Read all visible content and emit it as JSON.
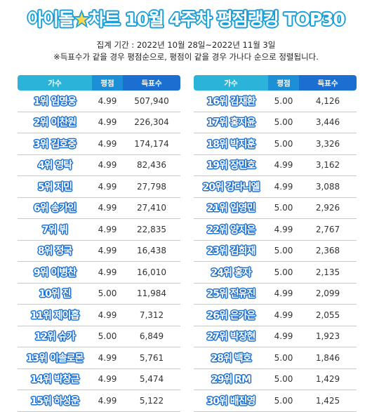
{
  "title_before_star": "아이돌",
  "title_star": "★",
  "title_after_star": "차트 10월 4주차 평점랭킹 TOP30",
  "period": "집계 기간 : 2022년 10월 28일~2022년 11월 3일",
  "note": "※득표수가 같을 경우 평점순으로, 평점이 같을 경우 가나다 순으로 정렬됩니다.",
  "headers": {
    "singer": "가수",
    "score": "평점",
    "votes": "득표수"
  },
  "colors": {
    "header_light": "#2bb3d9",
    "header_mid": "#1d8fd6",
    "header_dark": "#1a6fd1",
    "title_outline": "#1a9fd9"
  },
  "left": [
    {
      "name": "1위 임영웅",
      "score": "4.99",
      "votes": "507,940"
    },
    {
      "name": "2위 이찬원",
      "score": "4.99",
      "votes": "226,304"
    },
    {
      "name": "3위 김호중",
      "score": "4.99",
      "votes": "174,174"
    },
    {
      "name": "4위 영탁",
      "score": "4.99",
      "votes": "82,436"
    },
    {
      "name": "5위 지민",
      "score": "4.99",
      "votes": "27,798"
    },
    {
      "name": "6위 송가인",
      "score": "4.99",
      "votes": "27,410"
    },
    {
      "name": "7위 뷔",
      "score": "4.99",
      "votes": "22,835"
    },
    {
      "name": "8위 정국",
      "score": "4.99",
      "votes": "16,438"
    },
    {
      "name": "9위 이병찬",
      "score": "4.99",
      "votes": "16,010"
    },
    {
      "name": "10위 진",
      "score": "5.00",
      "votes": "11,984"
    },
    {
      "name": "11위 제이홉",
      "score": "4.99",
      "votes": "7,312"
    },
    {
      "name": "12위 슈가",
      "score": "5.00",
      "votes": "6,849"
    },
    {
      "name": "13위 이솔로몬",
      "score": "4.99",
      "votes": "5,761"
    },
    {
      "name": "14위 박창근",
      "score": "4.99",
      "votes": "5,474"
    },
    {
      "name": "15위 하성운",
      "score": "4.99",
      "votes": "5,122"
    }
  ],
  "right": [
    {
      "name": "16위 김재환",
      "score": "5.00",
      "votes": "4,126"
    },
    {
      "name": "17위 홍지윤",
      "score": "5.00",
      "votes": "3,446"
    },
    {
      "name": "18위 박지훈",
      "score": "5.00",
      "votes": "3,326"
    },
    {
      "name": "19위 장민호",
      "score": "4.99",
      "votes": "3,162"
    },
    {
      "name": "20위 강다니엘",
      "score": "4.99",
      "votes": "3,088"
    },
    {
      "name": "21위 임영민",
      "score": "5.00",
      "votes": "2,926"
    },
    {
      "name": "22위 양지은",
      "score": "4.99",
      "votes": "2,767"
    },
    {
      "name": "23위 김희재",
      "score": "5.00",
      "votes": "2,368"
    },
    {
      "name": "24위 홍자",
      "score": "5.00",
      "votes": "2,135"
    },
    {
      "name": "25위 전유진",
      "score": "4.99",
      "votes": "2,099"
    },
    {
      "name": "26위 은가은",
      "score": "4.99",
      "votes": "2,055"
    },
    {
      "name": "27위 박장현",
      "score": "4.99",
      "votes": "1,923"
    },
    {
      "name": "28위 백호",
      "score": "5.00",
      "votes": "1,846"
    },
    {
      "name": "29위 RM",
      "score": "5.00",
      "votes": "1,429"
    },
    {
      "name": "30위 배진영",
      "score": "5.00",
      "votes": "1,425"
    }
  ]
}
